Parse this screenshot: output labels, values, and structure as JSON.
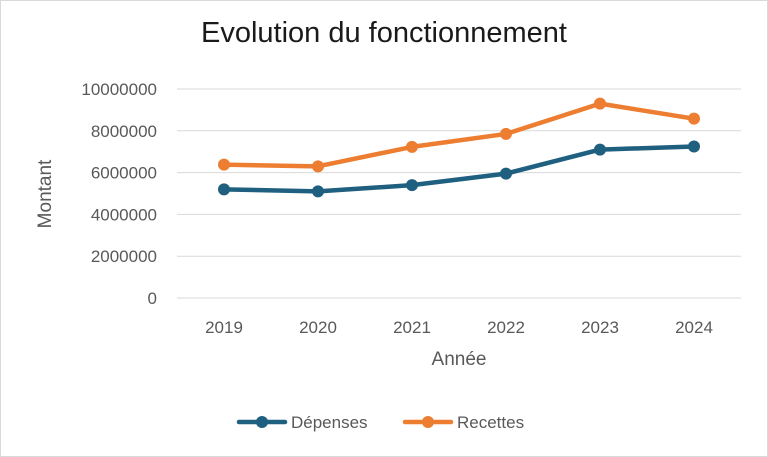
{
  "chart_data": {
    "type": "line",
    "title": "Evolution du fonctionnement",
    "xlabel": "Année",
    "ylabel": "Montant",
    "categories": [
      "2019",
      "2020",
      "2021",
      "2022",
      "2023",
      "2024"
    ],
    "ylim": [
      0,
      10000000
    ],
    "yticks": [
      "0",
      "2000000",
      "4000000",
      "6000000",
      "8000000",
      "10000000"
    ],
    "grid": true,
    "legend_position": "bottom",
    "series": [
      {
        "name": "Dépenses",
        "color": "#1f5f7f",
        "values": [
          5200000,
          5100000,
          5400000,
          5950000,
          7100000,
          7250000
        ]
      },
      {
        "name": "Recettes",
        "color": "#ed7d31",
        "values": [
          6380000,
          6300000,
          7230000,
          7850000,
          9300000,
          8580000
        ]
      }
    ]
  }
}
